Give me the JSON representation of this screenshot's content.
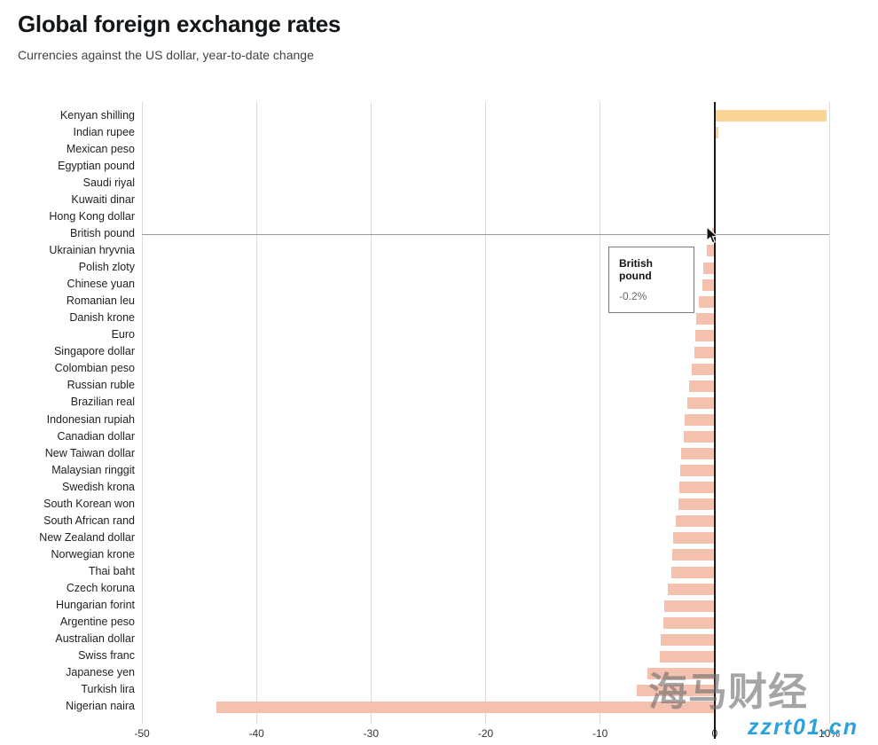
{
  "header": {
    "title": "Global foreign exchange rates",
    "subtitle": "Currencies against the US dollar, year-to-date change"
  },
  "chart_data": {
    "type": "bar",
    "orientation": "horizontal",
    "title": "Global foreign exchange rates",
    "subtitle": "Currencies against the US dollar, year-to-date change",
    "xlim": [
      -50,
      10
    ],
    "grid": true,
    "x_ticks": [
      {
        "value": -50,
        "label": "-50"
      },
      {
        "value": -40,
        "label": "-40"
      },
      {
        "value": -30,
        "label": "-30"
      },
      {
        "value": -20,
        "label": "-20"
      },
      {
        "value": -10,
        "label": "-10"
      },
      {
        "value": 0,
        "label": "0"
      },
      {
        "value": 10,
        "label": "10%"
      }
    ],
    "categories": [
      "Kenyan shilling",
      "Indian rupee",
      "Mexican peso",
      "Egyptian pound",
      "Saudi riyal",
      "Kuwaiti dinar",
      "Hong Kong dollar",
      "British pound",
      "Ukrainian hryvnia",
      "Polish zloty",
      "Chinese yuan",
      "Romanian leu",
      "Danish krone",
      "Euro",
      "Singapore dollar",
      "Colombian peso",
      "Russian ruble",
      "Brazilian real",
      "Indonesian rupiah",
      "Canadian dollar",
      "New Taiwan dollar",
      "Malaysian ringgit",
      "Swedish krona",
      "South Korean won",
      "South African rand",
      "New Zealand dollar",
      "Norwegian krone",
      "Thai baht",
      "Czech koruna",
      "Hungarian forint",
      "Argentine peso",
      "Australian dollar",
      "Swiss franc",
      "Japanese yen",
      "Turkish lira",
      "Nigerian naira"
    ],
    "values": [
      9.8,
      0.3,
      0.1,
      0.0,
      0.0,
      0.0,
      -0.1,
      -0.2,
      -0.7,
      -1.0,
      -1.1,
      -1.4,
      -1.6,
      -1.7,
      -1.8,
      -2.0,
      -2.2,
      -2.4,
      -2.6,
      -2.7,
      -2.9,
      -3.0,
      -3.1,
      -3.2,
      -3.4,
      -3.6,
      -3.7,
      -3.8,
      -4.1,
      -4.4,
      -4.5,
      -4.7,
      -4.8,
      -5.9,
      -6.8,
      -43.5
    ],
    "bar_colors": {
      "positive": "#fad596",
      "negative": "#f4c1ae"
    },
    "zero_line_color": "#1a1a1a",
    "gridline_color": "#dcdcdc"
  },
  "tooltip": {
    "label": "British pound",
    "value": "-0.2%"
  },
  "watermark": {
    "line1": "海马财经",
    "line2": "zzrt01.cn"
  }
}
